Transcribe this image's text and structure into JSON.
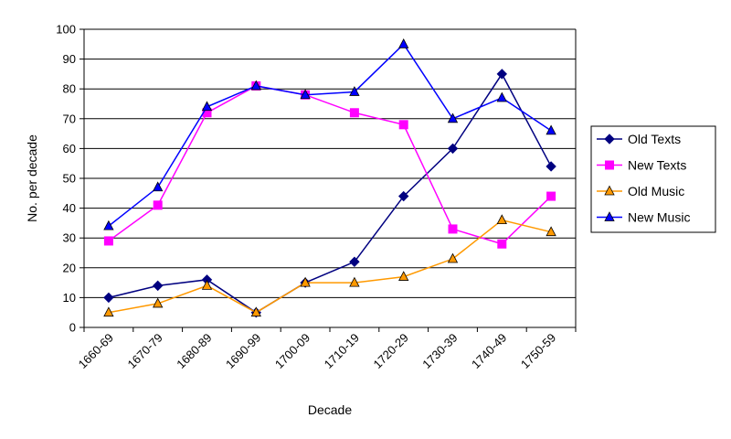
{
  "chart_data": {
    "type": "line",
    "title": "",
    "xlabel": "Decade",
    "ylabel": "No. per decade",
    "ylim": [
      0,
      100
    ],
    "yticks": [
      0,
      10,
      20,
      30,
      40,
      50,
      60,
      70,
      80,
      90,
      100
    ],
    "grid": "horizontal",
    "legend_position": "right",
    "categories": [
      "1660-69",
      "1670-79",
      "1680-89",
      "1690-99",
      "1700-09",
      "1710-19",
      "1720-29",
      "1730-39",
      "1740-49",
      "1750-59"
    ],
    "series": [
      {
        "name": "Old Texts",
        "color": "#000080",
        "marker": "diamond",
        "values": [
          10,
          14,
          16,
          5,
          15,
          22,
          44,
          60,
          85,
          54
        ]
      },
      {
        "name": "New Texts",
        "color": "#ff00ff",
        "marker": "square",
        "values": [
          29,
          41,
          72,
          81,
          78,
          72,
          68,
          33,
          28,
          44
        ]
      },
      {
        "name": "Old Music",
        "color": "#ff9900",
        "marker": "triangle",
        "values": [
          5,
          8,
          14,
          5,
          15,
          15,
          17,
          23,
          36,
          32
        ]
      },
      {
        "name": "New Music",
        "color": "#0000ff",
        "marker": "triangle",
        "values": [
          34,
          47,
          74,
          81,
          78,
          79,
          95,
          70,
          77,
          66
        ]
      }
    ]
  }
}
